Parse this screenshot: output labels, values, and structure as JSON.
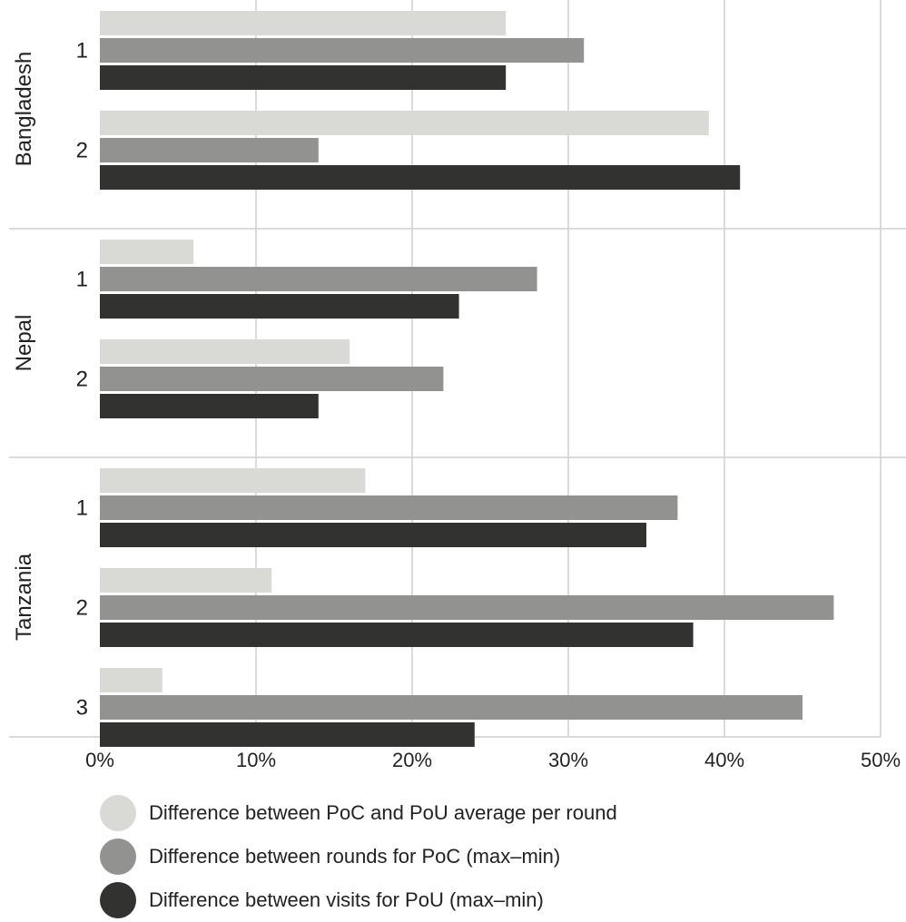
{
  "colors": {
    "series1": "#d9d9d6",
    "series2": "#929290",
    "series3": "#323331",
    "grid": "#cfcfcd",
    "text": "#222222"
  },
  "chart_data": {
    "type": "bar",
    "orientation": "horizontal",
    "xlim": [
      0,
      50
    ],
    "x_ticks": [
      "0%",
      "10%",
      "20%",
      "30%",
      "40%",
      "50%"
    ],
    "grid": true,
    "legend_position": "bottom",
    "series": [
      {
        "name": "Difference between PoC and PoU average per round"
      },
      {
        "name": "Difference between rounds for PoC (max–min)"
      },
      {
        "name": "Difference between visits for PoU (max–min)"
      }
    ],
    "groups": [
      {
        "name": "Bangladesh",
        "rounds": [
          {
            "label": "1",
            "values": [
              26,
              31,
              26
            ]
          },
          {
            "label": "2",
            "values": [
              39,
              14,
              41
            ]
          }
        ]
      },
      {
        "name": "Nepal",
        "rounds": [
          {
            "label": "1",
            "values": [
              6,
              28,
              23
            ]
          },
          {
            "label": "2",
            "values": [
              16,
              22,
              14
            ]
          }
        ]
      },
      {
        "name": "Tanzania",
        "rounds": [
          {
            "label": "1",
            "values": [
              17,
              37,
              35
            ]
          },
          {
            "label": "2",
            "values": [
              11,
              47,
              38
            ]
          },
          {
            "label": "3",
            "values": [
              4,
              45,
              24
            ]
          }
        ]
      }
    ]
  }
}
